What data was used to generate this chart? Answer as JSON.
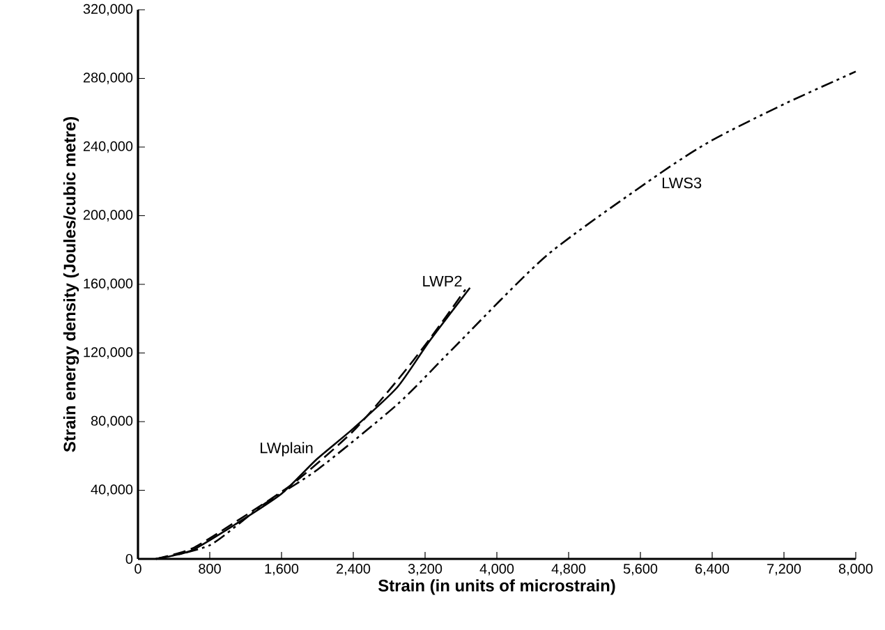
{
  "chart_data": {
    "type": "line",
    "xlabel": "Strain (in units of microstrain)",
    "ylabel": "Strain energy density (Joules/cubic metre)",
    "xlim": [
      0,
      8000
    ],
    "ylim": [
      0,
      320000
    ],
    "xticks": [
      0,
      800,
      {
        "value": 1600,
        "label": "1,600"
      },
      {
        "value": 2400,
        "label": "2,400"
      },
      {
        "value": 3200,
        "label": "3,200"
      },
      {
        "value": 4000,
        "label": "4,000"
      },
      {
        "value": 4800,
        "label": "4,800"
      },
      {
        "value": 5600,
        "label": "5,600"
      },
      {
        "value": 6400,
        "label": "6,400"
      },
      {
        "value": 7200,
        "label": "7,200"
      },
      {
        "value": 8000,
        "label": "8,000"
      }
    ],
    "yticks": [
      0,
      {
        "value": 40000,
        "label": "40,000"
      },
      {
        "value": 80000,
        "label": "80,000"
      },
      {
        "value": 120000,
        "label": "120,000"
      },
      {
        "value": 160000,
        "label": "160,000"
      },
      {
        "value": 200000,
        "label": "200,000"
      },
      {
        "value": 240000,
        "label": "240,000"
      },
      {
        "value": 280000,
        "label": "280,000"
      },
      {
        "value": 320000,
        "label": "320,000"
      }
    ],
    "grid": false,
    "legend": false,
    "marker": "none",
    "series": [
      {
        "name": "LWP2",
        "color": "#000000",
        "line_style": "dashed",
        "x": [
          200,
          600,
          1100,
          1730,
          2390,
          2890,
          3250,
          3650
        ],
        "values": [
          0,
          6000,
          22000,
          44000,
          74000,
          104000,
          128000,
          157000
        ]
      },
      {
        "name": "LWplain",
        "color": "#000000",
        "line_style": "solid",
        "x": [
          200,
          600,
          1080,
          1600,
          1990,
          2400,
          2890,
          3250,
          3700
        ],
        "values": [
          0,
          5000,
          20000,
          38000,
          58000,
          76000,
          100000,
          127000,
          158000
        ]
      },
      {
        "name": "LWS3",
        "color": "#000000",
        "line_style": "dashdotted",
        "x": [
          200,
          800,
          1380,
          2000,
          2890,
          3500,
          4560,
          5800,
          6400,
          7200,
          8000
        ],
        "values": [
          0,
          8000,
          31000,
          52000,
          90000,
          122000,
          177000,
          224000,
          244000,
          265000,
          284000
        ]
      }
    ]
  }
}
